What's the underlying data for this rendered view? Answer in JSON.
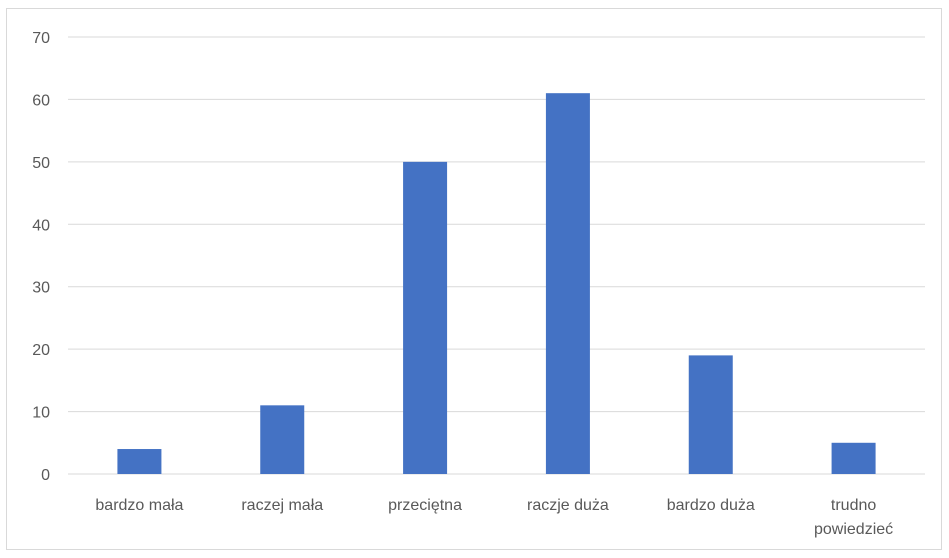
{
  "chart_data": {
    "type": "bar",
    "categories": [
      [
        "bardzo mała"
      ],
      [
        "raczej mała"
      ],
      [
        "przeciętna"
      ],
      [
        "raczje duża"
      ],
      [
        "bardzo duża"
      ],
      [
        "trudno",
        "powiedzieć"
      ]
    ],
    "values": [
      4,
      11,
      50,
      61,
      19,
      5
    ],
    "title": "",
    "xlabel": "",
    "ylabel": "",
    "ylim": [
      0,
      70
    ],
    "yticks": [
      0,
      10,
      20,
      30,
      40,
      50,
      60,
      70
    ],
    "grid": true,
    "legend": "none",
    "bar_color": "#4472c4"
  }
}
